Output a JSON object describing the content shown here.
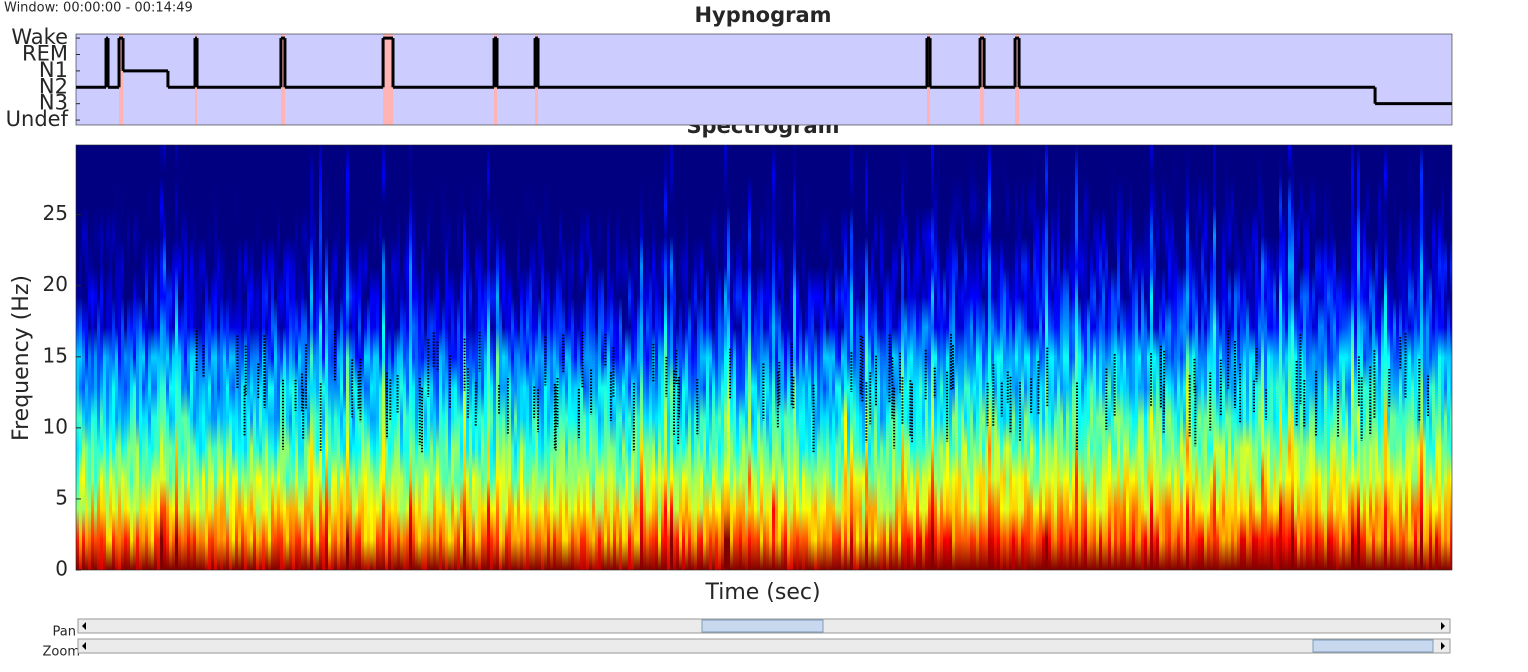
{
  "window_label": "Window: 00:00:00 - 00:14:49",
  "chart_data": [
    {
      "type": "step",
      "title": "Hypnogram",
      "x": [
        0,
        19.4,
        20.7,
        27.8,
        30.4,
        59.4,
        76.9,
        78.2,
        132.4,
        135.0,
        198.4,
        204.8,
        270.1,
        272.0,
        296.6,
        298.5,
        549.8,
        551.8,
        584.1,
        586.7,
        606.7,
        609.3,
        839.3
      ],
      "values": [
        2,
        5,
        2,
        5,
        3,
        2,
        5,
        2,
        5,
        2,
        5,
        2,
        5,
        2,
        5,
        2,
        5,
        2,
        5,
        2,
        5,
        2,
        1
      ],
      "color": "#000000",
      "background": "#ccccff",
      "shaded_regions": [
        [
          27.8,
          30.4
        ],
        [
          76.9,
          78.2
        ],
        [
          132.4,
          135.0
        ],
        [
          198.4,
          204.8
        ],
        [
          270.1,
          272.0
        ],
        [
          296.6,
          298.5
        ],
        [
          549.8,
          551.8
        ],
        [
          584.1,
          586.7
        ],
        [
          606.7,
          609.3
        ]
      ],
      "shade_color": "#ffb3b3",
      "xlim": [
        0,
        889
      ],
      "ylim": [
        -0.3,
        5.25
      ],
      "yticks": [
        {
          "value": 0,
          "label": "Undef"
        },
        {
          "value": 1,
          "label": "N3"
        },
        {
          "value": 2,
          "label": "N2"
        },
        {
          "value": 3,
          "label": "N1"
        },
        {
          "value": 4,
          "label": "REM"
        },
        {
          "value": 5,
          "label": "Wake"
        }
      ]
    },
    {
      "type": "spectrogram",
      "title": "Spectrogram",
      "xlabel": "Time (sec)",
      "ylabel": "Frequency (Hz)",
      "xlim": [
        0,
        889
      ],
      "ylim": [
        0,
        29.9
      ],
      "yticks": [
        0,
        5,
        10,
        15,
        20,
        25
      ]
    }
  ],
  "controls": {
    "pan_label": "Pan",
    "zoom_label": "Zoom"
  }
}
